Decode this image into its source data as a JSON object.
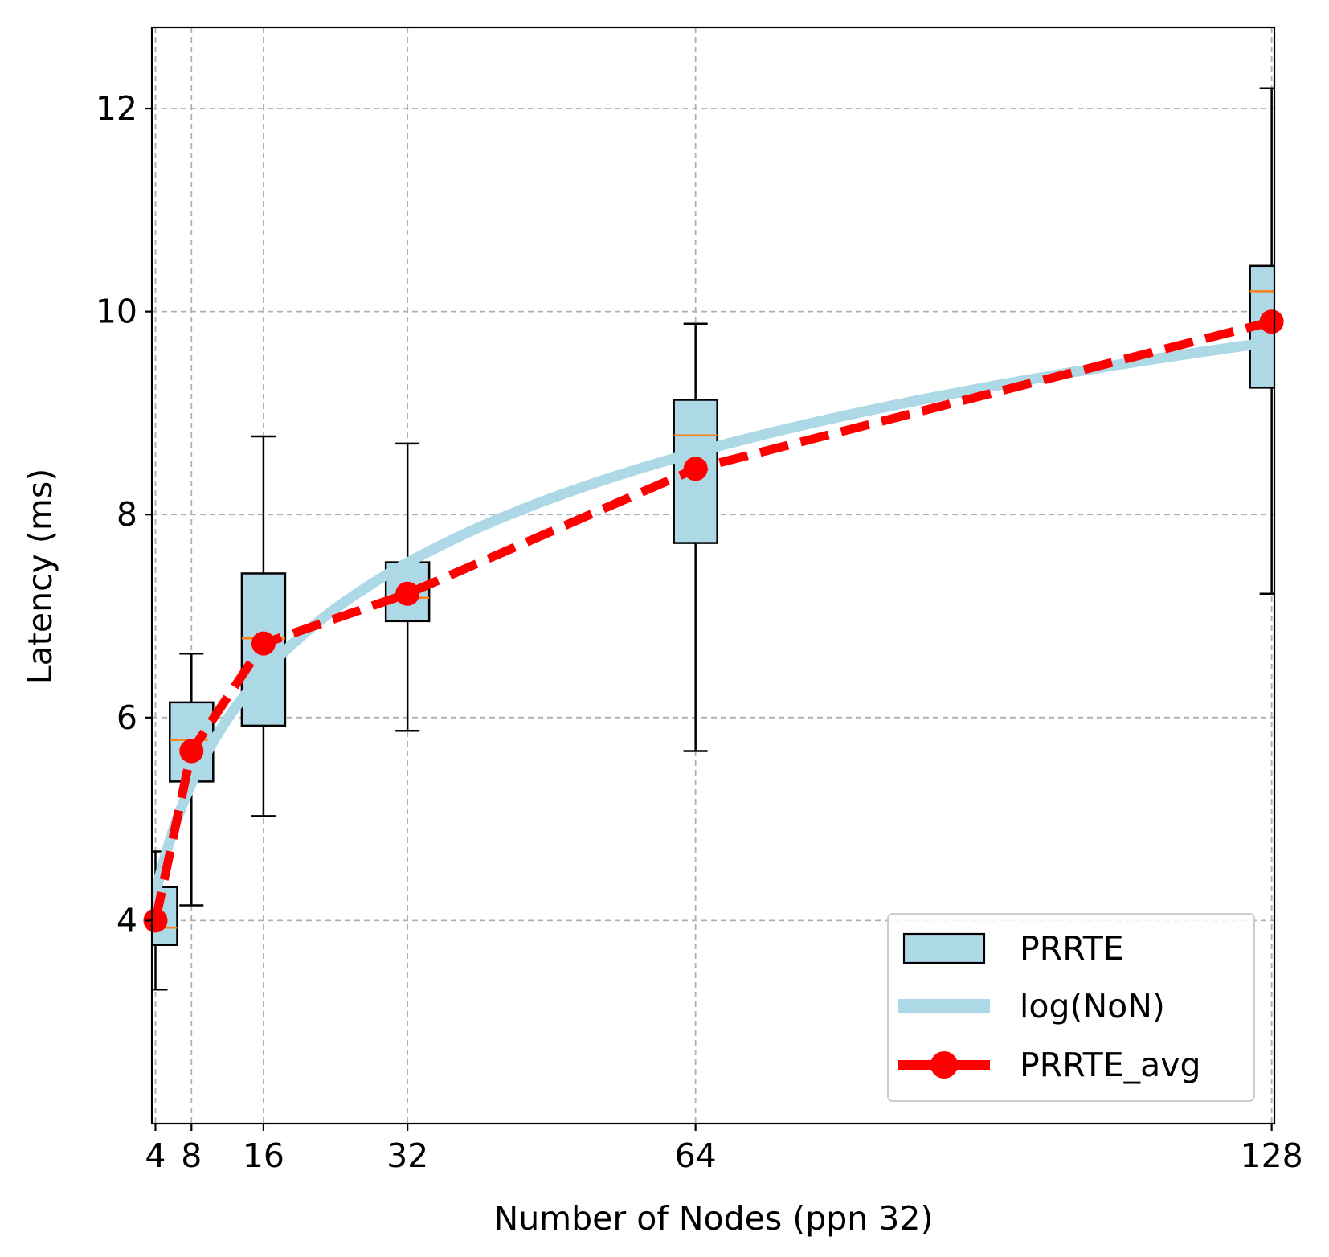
{
  "chart_data": {
    "type": "box",
    "xlabel": "Number of Nodes (ppn 32)",
    "ylabel": "Latency (ms)",
    "xlim": [
      3.6,
      128.3
    ],
    "ylim": [
      2.0,
      12.8
    ],
    "xticks": [
      4,
      8,
      16,
      32,
      64,
      128
    ],
    "xtick_labels": [
      "4",
      "8",
      "16",
      "32",
      "64",
      "128"
    ],
    "yticks": [
      4,
      6,
      8,
      10,
      12
    ],
    "ytick_labels": [
      "4",
      "6",
      "8",
      "10",
      "12"
    ],
    "grid": true,
    "legend_position": "lower-right",
    "boxes": {
      "name": "PRRTE",
      "color": "#add8e6",
      "median_color": "#ff7f0e",
      "items": [
        {
          "x": 4,
          "whisker_low": 3.32,
          "q1": 3.76,
          "median": 3.93,
          "q3": 4.33,
          "whisker_high": 4.68
        },
        {
          "x": 8,
          "whisker_low": 4.15,
          "q1": 5.37,
          "median": 5.78,
          "q3": 6.15,
          "whisker_high": 6.63
        },
        {
          "x": 16,
          "whisker_low": 5.03,
          "q1": 5.92,
          "median": 6.78,
          "q3": 7.42,
          "whisker_high": 8.77
        },
        {
          "x": 32,
          "whisker_low": 5.87,
          "q1": 6.95,
          "median": 7.18,
          "q3": 7.53,
          "whisker_high": 8.7
        },
        {
          "x": 64,
          "whisker_low": 5.67,
          "q1": 7.72,
          "median": 8.78,
          "q3": 9.13,
          "whisker_high": 9.88
        },
        {
          "x": 128,
          "whisker_low": 7.22,
          "q1": 9.25,
          "median": 10.2,
          "q3": 10.45,
          "whisker_high": 12.2
        }
      ]
    },
    "fit": {
      "name": "log(NoN)",
      "color": "#add8e6",
      "x_start": 3.6,
      "x_end": 128,
      "y_at_x_8": 5.35,
      "y_at_x_128": 9.7
    },
    "average": {
      "name": "PRRTE_avg",
      "color": "#ff0000",
      "x": [
        4,
        8,
        16,
        32,
        64,
        128
      ],
      "y": [
        4.0,
        5.67,
        6.73,
        7.22,
        8.45,
        9.9
      ]
    },
    "legend": [
      "PRRTE",
      "log(NoN)",
      "PRRTE_avg"
    ]
  }
}
